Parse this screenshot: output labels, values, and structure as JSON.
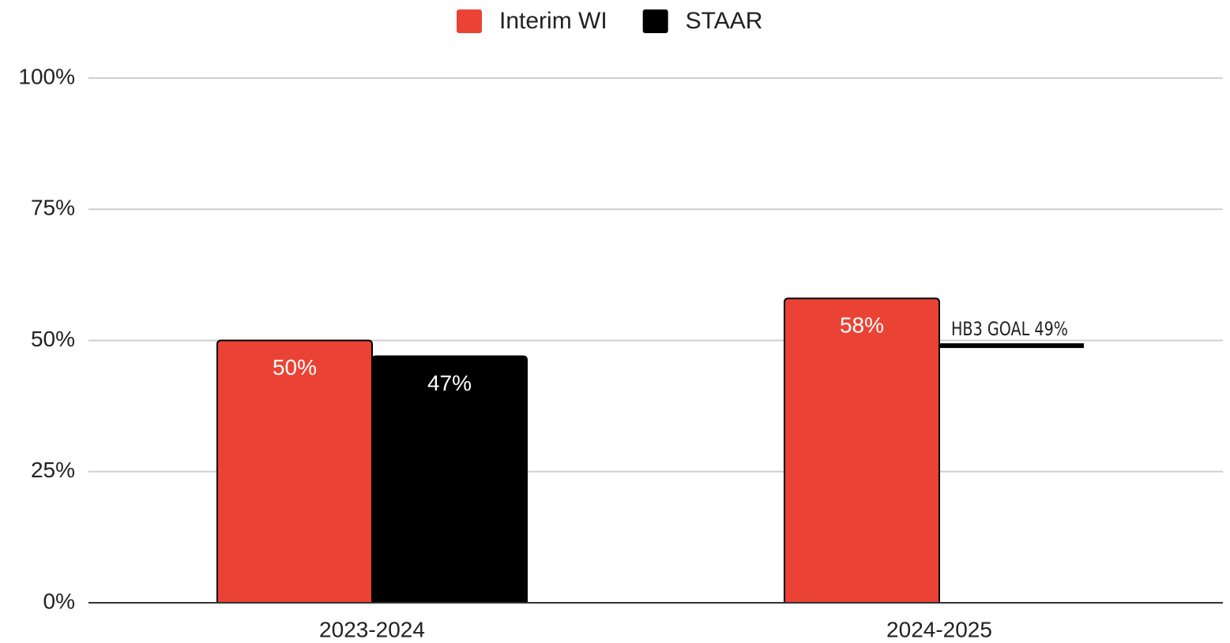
{
  "chart_data": {
    "type": "bar",
    "categories": [
      "2023-2024",
      "2024-2025"
    ],
    "series": [
      {
        "name": "Interim WI",
        "color": "#ea4335",
        "values": [
          50,
          58
        ],
        "value_labels": [
          "50%",
          "58%"
        ]
      },
      {
        "name": "STAAR",
        "color": "#000000",
        "values": [
          47,
          null
        ],
        "value_labels": [
          "47%",
          null
        ]
      }
    ],
    "ylim": [
      0,
      100
    ],
    "yticks": [
      {
        "value": 0,
        "label": "0%"
      },
      {
        "value": 25,
        "label": "25%"
      },
      {
        "value": 50,
        "label": "50%"
      },
      {
        "value": 75,
        "label": "75%"
      },
      {
        "value": 100,
        "label": "100%"
      }
    ],
    "grid": true,
    "legend": "top",
    "annotation": {
      "text": "HB3 GOAL 49%",
      "value": 49
    }
  }
}
